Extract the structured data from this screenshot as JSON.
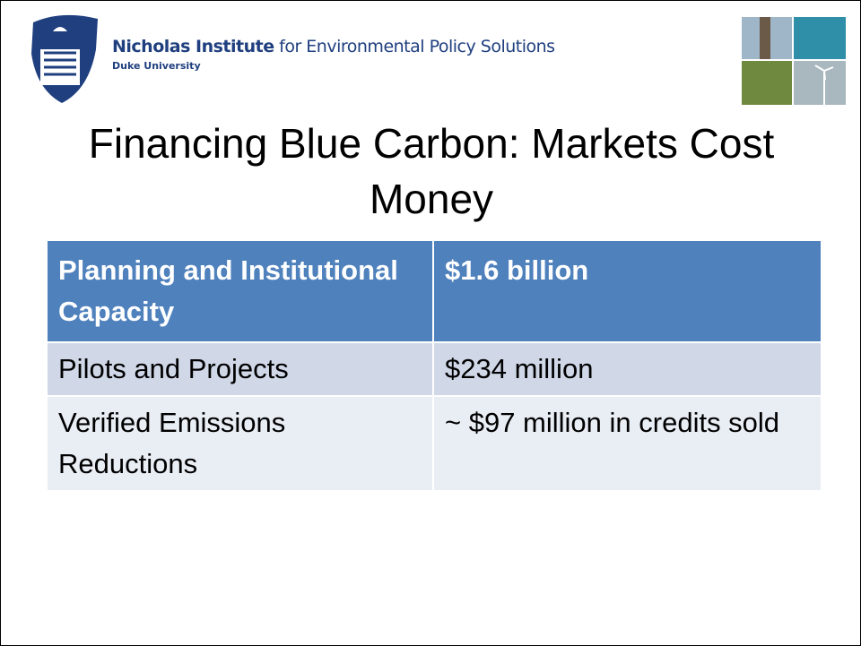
{
  "header": {
    "institute_bold": "Nicholas Institute",
    "institute_rest": "for Environmental Policy Solutions",
    "university": "Duke University"
  },
  "title": "Financing Blue Carbon: Markets Cost Money",
  "table": {
    "rows": [
      [
        "Planning and Institutional Capacity",
        "$1.6 billion"
      ],
      [
        "Pilots and Projects",
        "$234 million"
      ],
      [
        "Verified Emissions Reductions",
        "~ $97 million in credits sold"
      ]
    ]
  }
}
